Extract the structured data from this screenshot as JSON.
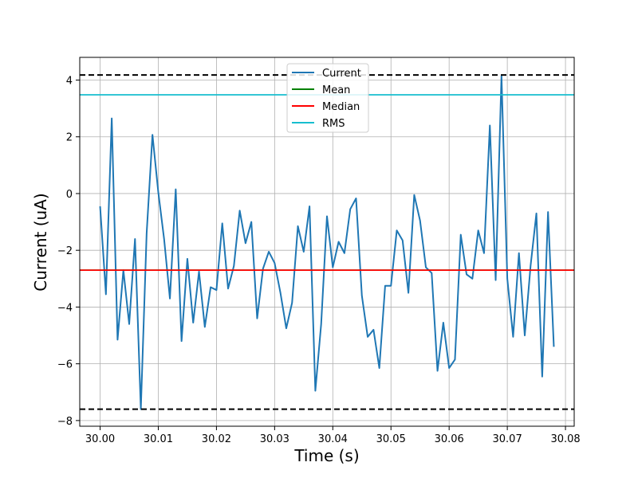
{
  "chart_data": {
    "type": "line",
    "xlabel": "Time (s)",
    "ylabel": "Current (uA)",
    "xlim": [
      29.9965,
      30.0815
    ],
    "ylim": [
      -8.2,
      4.8
    ],
    "grid": true,
    "legend_position": "top-center",
    "x_ticks": [
      30.0,
      30.01,
      30.02,
      30.03,
      30.04,
      30.05,
      30.06,
      30.07,
      30.08
    ],
    "x_tick_labels": [
      "30.00",
      "30.01",
      "30.02",
      "30.03",
      "30.04",
      "30.05",
      "30.06",
      "30.07",
      "30.08"
    ],
    "y_ticks": [
      -8,
      -6,
      -4,
      -2,
      0,
      2,
      4
    ],
    "y_tick_labels": [
      "−8",
      "−6",
      "−4",
      "−2",
      "0",
      "2",
      "4"
    ],
    "series": [
      {
        "name": "Current",
        "color": "#1f77b4",
        "x_start": 30.0,
        "x_step": 0.001,
        "values": [
          -0.45,
          -3.55,
          2.65,
          -5.15,
          -2.7,
          -4.6,
          -1.6,
          -7.6,
          -1.4,
          2.07,
          0.05,
          -1.6,
          -3.7,
          0.15,
          -5.2,
          -2.3,
          -4.55,
          -2.75,
          -4.7,
          -3.3,
          -3.4,
          -1.05,
          -3.35,
          -2.55,
          -0.6,
          -1.75,
          -1.0,
          -4.4,
          -2.65,
          -2.05,
          -2.45,
          -3.5,
          -4.75,
          -3.85,
          -1.15,
          -2.05,
          -0.45,
          -6.95,
          -4.6,
          -0.8,
          -2.6,
          -1.7,
          -2.1,
          -0.55,
          -0.17,
          -3.6,
          -5.05,
          -4.8,
          -6.15,
          -3.25,
          -3.25,
          -1.3,
          -1.65,
          -3.5,
          -0.05,
          -0.95,
          -2.6,
          -2.8,
          -6.25,
          -4.55,
          -6.15,
          -5.85,
          -1.45,
          -2.85,
          -3.0,
          -1.3,
          -2.1,
          2.4,
          -3.05,
          4.15,
          -3.0,
          -5.05,
          -2.1,
          -5.0,
          -2.55,
          -0.7,
          -6.45,
          -0.65,
          -5.4
        ]
      }
    ],
    "reference_lines": [
      {
        "name": "Mean",
        "color": "#008000",
        "y": -2.7,
        "style": "solid"
      },
      {
        "name": "Median",
        "color": "#ff0000",
        "y": -2.7,
        "style": "solid"
      },
      {
        "name": "RMS",
        "color": "#17becf",
        "y": 3.48,
        "style": "solid"
      },
      {
        "name": "",
        "color": "#000000",
        "y": 4.18,
        "style": "dashed"
      },
      {
        "name": "",
        "color": "#000000",
        "y": -7.6,
        "style": "dashed"
      }
    ],
    "legend": [
      "Current",
      "Mean",
      "Median",
      "RMS"
    ]
  }
}
